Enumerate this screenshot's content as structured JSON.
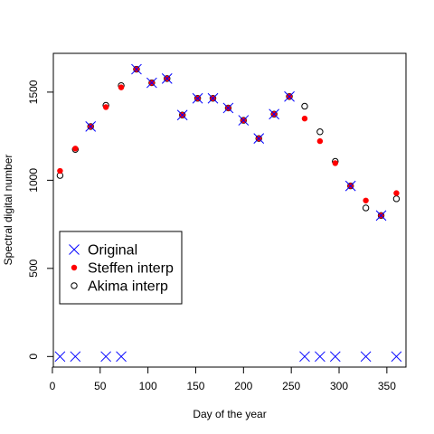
{
  "chart_data": {
    "type": "scatter",
    "title": "",
    "xlabel": "Day of the year",
    "ylabel": "Spectral digital number",
    "xlim": [
      1,
      370
    ],
    "ylim": [
      -60,
      1720
    ],
    "x_ticks": [
      0,
      50,
      100,
      150,
      200,
      250,
      300,
      350
    ],
    "y_ticks": [
      0,
      500,
      1000,
      1500
    ],
    "x_tick_labels": [
      "0",
      "50",
      "100",
      "150",
      "200",
      "250",
      "300",
      "350"
    ],
    "y_tick_labels": [
      "0",
      "500",
      "1000",
      "1500"
    ],
    "grid": false,
    "legend_position": "bottom-left",
    "series": [
      {
        "name": "Original",
        "marker": "x",
        "color": "#0000ff",
        "points": [
          [
            8,
            0
          ],
          [
            24,
            0
          ],
          [
            40,
            1305
          ],
          [
            56,
            0
          ],
          [
            72,
            0
          ],
          [
            88,
            1630
          ],
          [
            104,
            1553
          ],
          [
            120,
            1577
          ],
          [
            136,
            1370
          ],
          [
            152,
            1465
          ],
          [
            168,
            1465
          ],
          [
            184,
            1410
          ],
          [
            200,
            1340
          ],
          [
            216,
            1237
          ],
          [
            232,
            1375
          ],
          [
            248,
            1475
          ],
          [
            264,
            0
          ],
          [
            280,
            0
          ],
          [
            296,
            0
          ],
          [
            312,
            968
          ],
          [
            328,
            0
          ],
          [
            344,
            800
          ],
          [
            360,
            0
          ]
        ]
      },
      {
        "name": "Steffen interp",
        "marker": "filled-circle",
        "color": "#ff0000",
        "points": [
          [
            8,
            1053
          ],
          [
            24,
            1180
          ],
          [
            40,
            1305
          ],
          [
            56,
            1415
          ],
          [
            72,
            1527
          ],
          [
            88,
            1630
          ],
          [
            104,
            1553
          ],
          [
            120,
            1577
          ],
          [
            136,
            1370
          ],
          [
            152,
            1465
          ],
          [
            168,
            1465
          ],
          [
            184,
            1410
          ],
          [
            200,
            1340
          ],
          [
            216,
            1237
          ],
          [
            232,
            1375
          ],
          [
            248,
            1475
          ],
          [
            264,
            1350
          ],
          [
            280,
            1222
          ],
          [
            296,
            1097
          ],
          [
            312,
            968
          ],
          [
            328,
            885
          ],
          [
            344,
            800
          ],
          [
            360,
            927
          ]
        ]
      },
      {
        "name": "Akima interp",
        "marker": "open-circle",
        "color": "#000000",
        "points": [
          [
            8,
            1027
          ],
          [
            24,
            1175
          ],
          [
            40,
            1305
          ],
          [
            56,
            1425
          ],
          [
            72,
            1537
          ],
          [
            88,
            1630
          ],
          [
            104,
            1553
          ],
          [
            120,
            1577
          ],
          [
            136,
            1370
          ],
          [
            152,
            1465
          ],
          [
            168,
            1465
          ],
          [
            184,
            1410
          ],
          [
            200,
            1340
          ],
          [
            216,
            1237
          ],
          [
            232,
            1375
          ],
          [
            248,
            1475
          ],
          [
            264,
            1420
          ],
          [
            280,
            1275
          ],
          [
            296,
            1107
          ],
          [
            312,
            968
          ],
          [
            328,
            843
          ],
          [
            344,
            800
          ],
          [
            360,
            895
          ]
        ]
      }
    ]
  }
}
